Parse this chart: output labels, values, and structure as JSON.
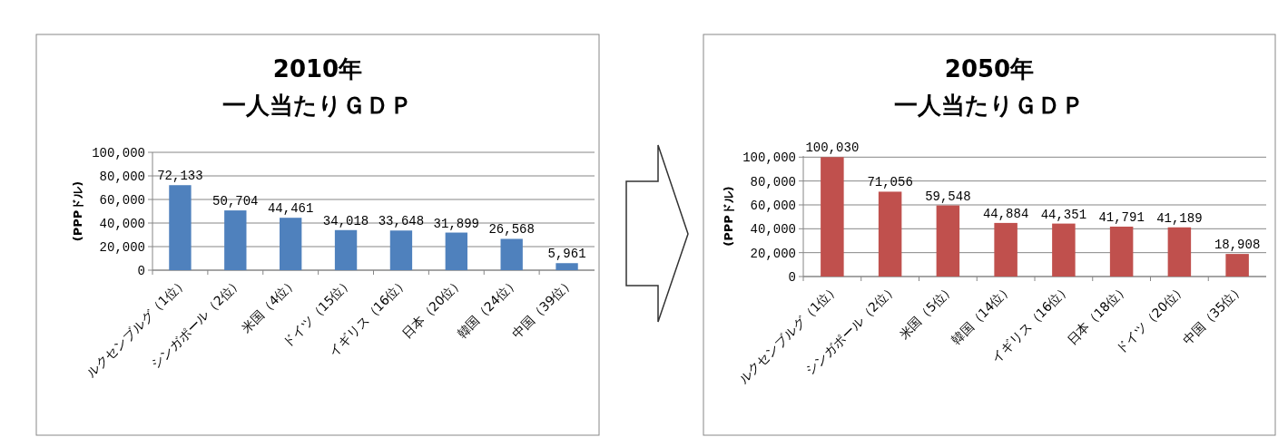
{
  "chart_data": [
    {
      "type": "bar",
      "title": "2010年",
      "subtitle": "一人当たりＧＤＰ",
      "ylabel": "(PPPドル)",
      "categories": [
        "ルクセンブルグ（1位）",
        "シンガポール（2位）",
        "米国（4位）",
        "ドイツ（15位）",
        "イギリス（16位）",
        "日本（20位）",
        "韓国（24位）",
        "中国（39位）"
      ],
      "values": [
        72133,
        50704,
        44461,
        34018,
        33648,
        31899,
        26568,
        5961
      ],
      "color": "#4f81bd",
      "ylim": [
        0,
        100000
      ],
      "yticks": [
        {
          "value": 0,
          "label": "0"
        },
        {
          "value": 20000,
          "label": "20,000"
        },
        {
          "value": 40000,
          "label": "40,000"
        },
        {
          "value": 60000,
          "label": "60,000"
        },
        {
          "value": 80000,
          "label": "80,000"
        },
        {
          "value": 100000,
          "label": "100,000"
        }
      ],
      "grid": "y",
      "value_labels": [
        "72,133",
        "50,704",
        "44,461",
        "34,018",
        "33,648",
        "31,899",
        "26,568",
        "5,961"
      ]
    },
    {
      "type": "bar",
      "title": "2050年",
      "subtitle": "一人当たりＧＤＰ",
      "ylabel": "(PPPドル)",
      "categories": [
        "ルクセンブルグ（1位）",
        "シンガポール（2位）",
        "米国（5位）",
        "韓国（14位）",
        "イギリス（16位）",
        "日本（18位）",
        "ドイツ（20位）",
        "中国（35位）"
      ],
      "values": [
        100030,
        71056,
        59548,
        44884,
        44351,
        41791,
        41189,
        18908
      ],
      "color": "#c0504d",
      "ylim": [
        0,
        101000
      ],
      "yticks": [
        {
          "value": 0,
          "label": "0"
        },
        {
          "value": 20000,
          "label": "20,000"
        },
        {
          "value": 40000,
          "label": "40,000"
        },
        {
          "value": 60000,
          "label": "60,000"
        },
        {
          "value": 80000,
          "label": "80,000"
        },
        {
          "value": 100000,
          "label": "100,000"
        }
      ],
      "grid": "y",
      "value_labels": [
        "100,030",
        "71,056",
        "59,548",
        "44,884",
        "44,351",
        "41,791",
        "41,189",
        "18,908"
      ]
    }
  ]
}
